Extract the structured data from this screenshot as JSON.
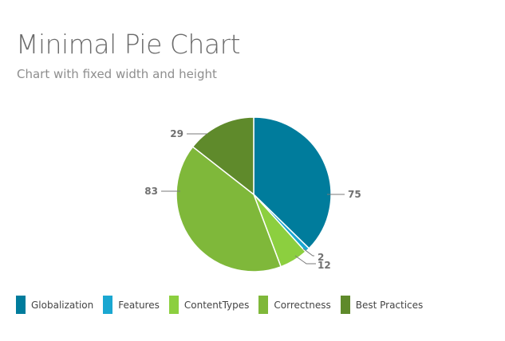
{
  "header": {
    "title": "Minimal Pie Chart",
    "subtitle": "Chart with fixed width and height"
  },
  "chart_data": {
    "type": "pie",
    "title": "Minimal Pie Chart",
    "subtitle": "Chart with fixed width and height",
    "legend_position": "bottom-left",
    "slices": [
      {
        "name": "Globalization",
        "value": 75,
        "label": "75",
        "color": "#007c9c"
      },
      {
        "name": "Features",
        "value": 2,
        "label": "2",
        "color": "#1aa7d1"
      },
      {
        "name": "ContentTypes",
        "value": 12,
        "label": "12",
        "color": "#8ccf3f"
      },
      {
        "name": "Correctness",
        "value": 83,
        "label": "83",
        "color": "#7fb83a"
      },
      {
        "name": "Best Practices",
        "value": 29,
        "label": "29",
        "color": "#5f8a2b"
      }
    ]
  }
}
